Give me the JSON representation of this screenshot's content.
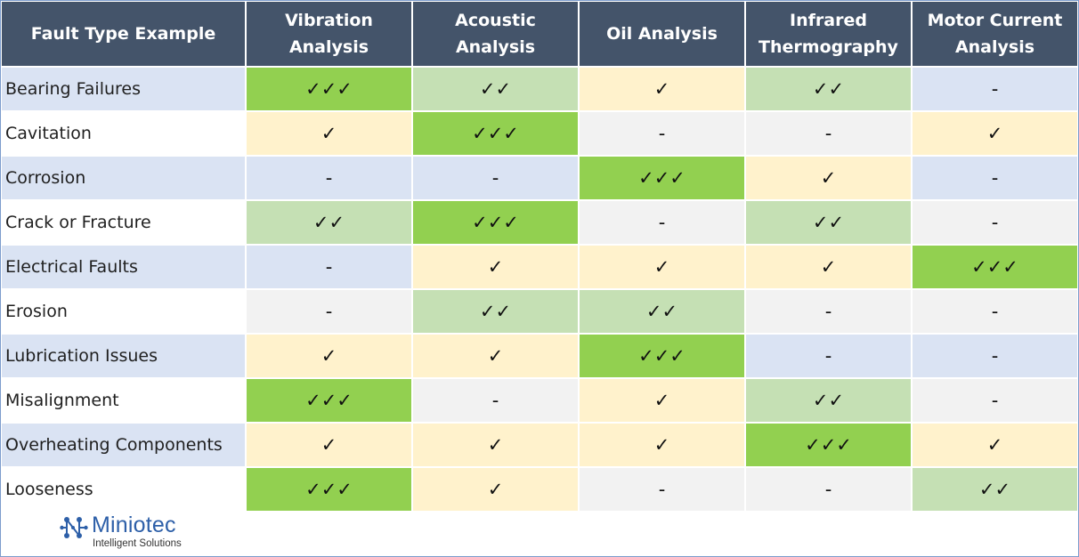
{
  "table": {
    "headers": [
      "Fault Type Example",
      "Vibration Analysis",
      "Acoustic Analysis",
      "Oil Analysis",
      "Infrared\nThermography",
      "Motor Current\nAnalysis"
    ],
    "rows": [
      {
        "label": "Bearing Failures",
        "label_bg": "#dae3f3",
        "cells": [
          {
            "v": "✓✓✓",
            "bg": "#92d050"
          },
          {
            "v": "✓✓",
            "bg": "#c5e0b4"
          },
          {
            "v": "✓",
            "bg": "#fff2cc"
          },
          {
            "v": "✓✓",
            "bg": "#c5e0b4"
          },
          {
            "v": "-",
            "bg": "#dae3f3"
          }
        ]
      },
      {
        "label": "Cavitation",
        "label_bg": "#ffffff",
        "cells": [
          {
            "v": "✓",
            "bg": "#fff2cc"
          },
          {
            "v": "✓✓✓",
            "bg": "#92d050"
          },
          {
            "v": "-",
            "bg": "#f2f2f2"
          },
          {
            "v": "-",
            "bg": "#f2f2f2"
          },
          {
            "v": "✓",
            "bg": "#fff2cc"
          }
        ]
      },
      {
        "label": "Corrosion",
        "label_bg": "#dae3f3",
        "cells": [
          {
            "v": "-",
            "bg": "#dae3f3"
          },
          {
            "v": "-",
            "bg": "#dae3f3"
          },
          {
            "v": "✓✓✓",
            "bg": "#92d050"
          },
          {
            "v": "✓",
            "bg": "#fff2cc"
          },
          {
            "v": "-",
            "bg": "#dae3f3"
          }
        ]
      },
      {
        "label": "Crack or Fracture",
        "label_bg": "#ffffff",
        "cells": [
          {
            "v": "✓✓",
            "bg": "#c5e0b4"
          },
          {
            "v": "✓✓✓",
            "bg": "#92d050"
          },
          {
            "v": "-",
            "bg": "#f2f2f2"
          },
          {
            "v": "✓✓",
            "bg": "#c5e0b4"
          },
          {
            "v": "-",
            "bg": "#f2f2f2"
          }
        ]
      },
      {
        "label": "Electrical Faults",
        "label_bg": "#dae3f3",
        "cells": [
          {
            "v": "-",
            "bg": "#dae3f3"
          },
          {
            "v": "✓",
            "bg": "#fff2cc"
          },
          {
            "v": "✓",
            "bg": "#fff2cc"
          },
          {
            "v": "✓",
            "bg": "#fff2cc"
          },
          {
            "v": "✓✓✓",
            "bg": "#92d050"
          }
        ]
      },
      {
        "label": "Erosion",
        "label_bg": "#ffffff",
        "cells": [
          {
            "v": "-",
            "bg": "#f2f2f2"
          },
          {
            "v": "✓✓",
            "bg": "#c5e0b4"
          },
          {
            "v": "✓✓",
            "bg": "#c5e0b4"
          },
          {
            "v": "-",
            "bg": "#f2f2f2"
          },
          {
            "v": "-",
            "bg": "#f2f2f2"
          }
        ]
      },
      {
        "label": "Lubrication Issues",
        "label_bg": "#dae3f3",
        "cells": [
          {
            "v": "✓",
            "bg": "#fff2cc"
          },
          {
            "v": "✓",
            "bg": "#fff2cc"
          },
          {
            "v": "✓✓✓",
            "bg": "#92d050"
          },
          {
            "v": "-",
            "bg": "#dae3f3"
          },
          {
            "v": "-",
            "bg": "#dae3f3"
          }
        ]
      },
      {
        "label": "Misalignment",
        "label_bg": "#ffffff",
        "cells": [
          {
            "v": "✓✓✓",
            "bg": "#92d050"
          },
          {
            "v": "-",
            "bg": "#f2f2f2"
          },
          {
            "v": "✓",
            "bg": "#fff2cc"
          },
          {
            "v": "✓✓",
            "bg": "#c5e0b4"
          },
          {
            "v": "-",
            "bg": "#f2f2f2"
          }
        ]
      },
      {
        "label": "Overheating Components",
        "label_bg": "#dae3f3",
        "cells": [
          {
            "v": "✓",
            "bg": "#fff2cc"
          },
          {
            "v": "✓",
            "bg": "#fff2cc"
          },
          {
            "v": "✓",
            "bg": "#fff2cc"
          },
          {
            "v": "✓✓✓",
            "bg": "#92d050"
          },
          {
            "v": "✓",
            "bg": "#fff2cc"
          }
        ]
      },
      {
        "label": "Looseness",
        "label_bg": "#ffffff",
        "cells": [
          {
            "v": "✓✓✓",
            "bg": "#92d050"
          },
          {
            "v": "✓",
            "bg": "#fff2cc"
          },
          {
            "v": "-",
            "bg": "#f2f2f2"
          },
          {
            "v": "-",
            "bg": "#f2f2f2"
          },
          {
            "v": "✓✓",
            "bg": "#c5e0b4"
          }
        ]
      }
    ]
  },
  "logo": {
    "name": "Miniotec",
    "tagline": "Intelligent Solutions",
    "icon": "network-nodes-icon",
    "color": "#2d5fa8"
  },
  "colors": {
    "header_bg": "#44546a",
    "header_text": "#ffffff",
    "strong": "#92d050",
    "medium": "#c5e0b4",
    "weak": "#fff2cc",
    "none_blue": "#dae3f3",
    "none_gray": "#f2f2f2"
  }
}
